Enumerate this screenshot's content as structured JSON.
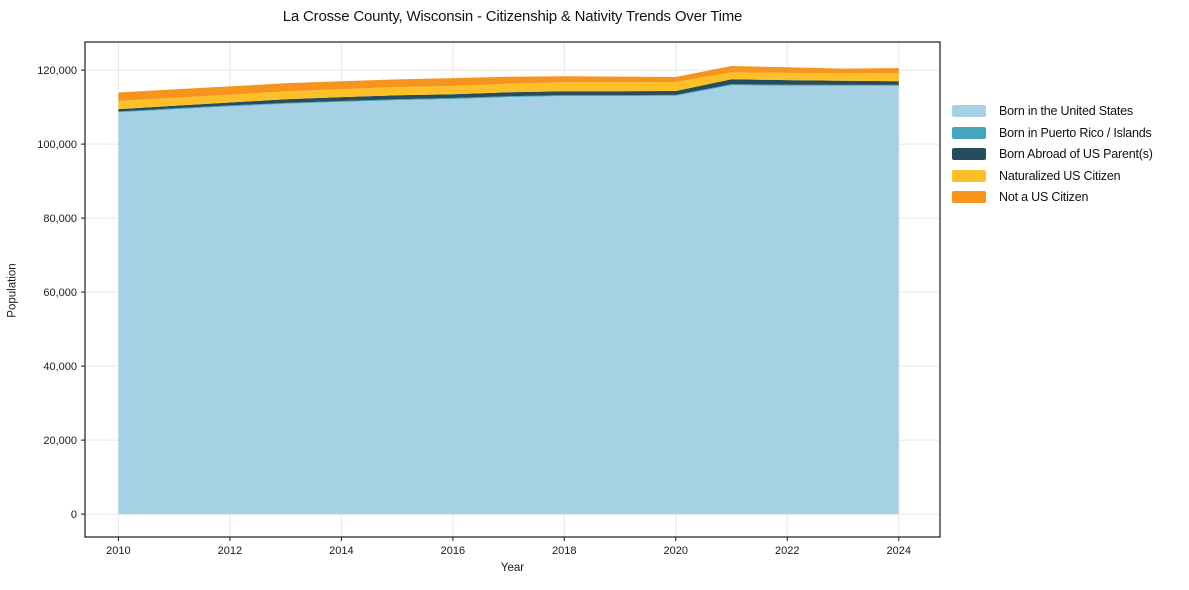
{
  "title": "La Crosse County, Wisconsin - Citizenship & Nativity Trends Over Time",
  "chart_data": {
    "type": "area",
    "stacked": true,
    "title": "La Crosse County, Wisconsin - Citizenship & Nativity Trends Over Time",
    "xlabel": "Year",
    "ylabel": "Population",
    "x": [
      2010,
      2011,
      2012,
      2013,
      2014,
      2015,
      2016,
      2017,
      2018,
      2019,
      2020,
      2021,
      2022,
      2023,
      2024
    ],
    "series": [
      {
        "name": "Born in the United States",
        "color": "#a6d0e4",
        "values": [
          108600,
          109400,
          110200,
          110900,
          111400,
          111900,
          112200,
          112700,
          113000,
          113000,
          113050,
          115950,
          115800,
          115750,
          115750
        ]
      },
      {
        "name": "Born in Puerto Rico / Islands",
        "color": "#45a5bf",
        "values": [
          250,
          250,
          250,
          250,
          250,
          250,
          250,
          250,
          250,
          250,
          250,
          250,
          250,
          250,
          250
        ]
      },
      {
        "name": "Born Abroad of US Parent(s)",
        "color": "#264d5c",
        "values": [
          600,
          700,
          800,
          950,
          1050,
          1050,
          1050,
          1050,
          1050,
          1050,
          1050,
          1350,
          1250,
          1100,
          1000
        ]
      },
      {
        "name": "Naturalized US Citizen",
        "color": "#fdc029",
        "values": [
          2200,
          2150,
          2100,
          2150,
          2150,
          2200,
          2200,
          2300,
          2450,
          2450,
          2450,
          1900,
          1950,
          2050,
          2150
        ]
      },
      {
        "name": "Not a US Citizen",
        "color": "#f6941e",
        "values": [
          2300,
          2300,
          2250,
          2200,
          2150,
          2100,
          2150,
          1900,
          1600,
          1500,
          1350,
          1650,
          1500,
          1250,
          1400
        ]
      }
    ],
    "x_ticks": [
      2010,
      2012,
      2014,
      2016,
      2018,
      2020,
      2022,
      2024
    ],
    "x_tick_labels": [
      "2010",
      "2012",
      "2014",
      "2016",
      "2018",
      "2020",
      "2022",
      "2024"
    ],
    "y_ticks": [
      0,
      20000,
      40000,
      60000,
      80000,
      100000,
      120000
    ],
    "y_tick_labels": [
      "0",
      "20,000",
      "40,000",
      "60,000",
      "80,000",
      "100,000",
      "120,000"
    ],
    "xlim": [
      2009.4,
      2024.74
    ],
    "ylim": [
      -6200,
      127600
    ],
    "grid": true,
    "legend_position": "right",
    "colors": {
      "grid": "#e8e8e8",
      "spine": "#1a1a1a",
      "tick_label": "#1a1a1a",
      "background": "#ffffff"
    }
  }
}
